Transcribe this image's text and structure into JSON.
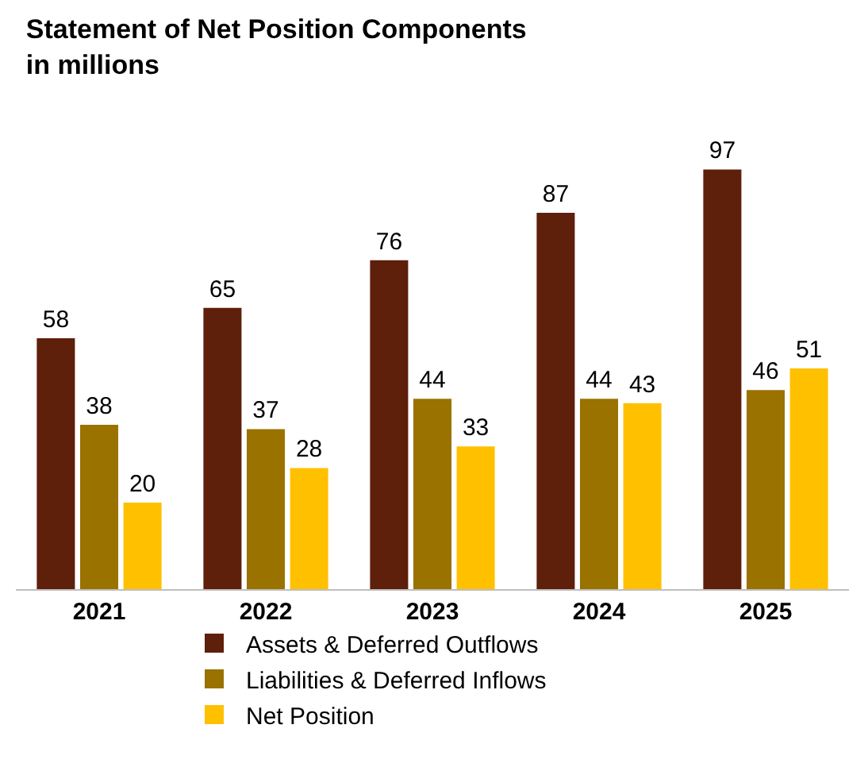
{
  "chart_data": {
    "type": "bar",
    "title": "Statement of Net Position Components\nin millions",
    "categories": [
      "2021",
      "2022",
      "2023",
      "2024",
      "2025"
    ],
    "series": [
      {
        "name": "Assets & Deferred Outflows",
        "color": "#5e1f0b",
        "values": [
          58,
          65,
          76,
          87,
          97
        ]
      },
      {
        "name": "Liabilities & Deferred Inflows",
        "color": "#9a7200",
        "values": [
          38,
          37,
          44,
          44,
          46
        ]
      },
      {
        "name": "Net Position",
        "color": "#ffc000",
        "values": [
          20,
          28,
          33,
          43,
          51
        ]
      }
    ],
    "data_labels": true,
    "legend": "bottom",
    "grid": false
  }
}
